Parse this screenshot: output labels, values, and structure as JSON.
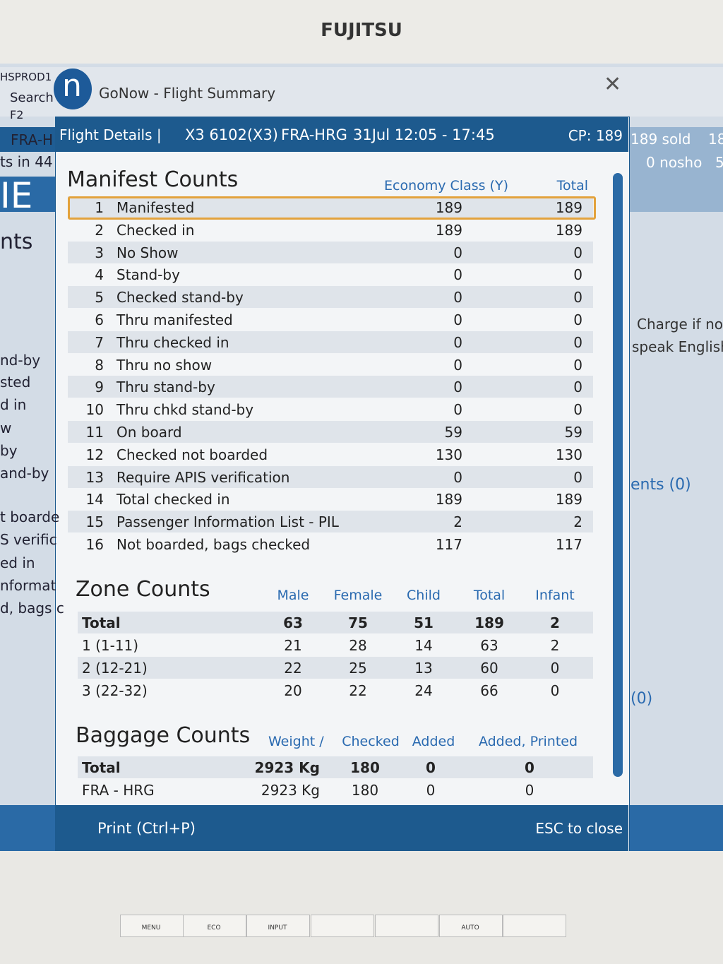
{
  "monitor": {
    "brand": "FUJITSU",
    "buttons": [
      "MENU",
      "ECO",
      "INPUT",
      "AUTO"
    ]
  },
  "background_app": {
    "left_texts": [
      "HSPROD1",
      "Search",
      "F2",
      "FRA-H",
      "ts in 44",
      "IE",
      "nts",
      "nd-by",
      "sted",
      "d in",
      "w",
      "by",
      "and-by",
      "t boarde",
      "S verific",
      "ed in",
      "nformat",
      "d, bags c"
    ],
    "right_texts": [
      "189 sold",
      "18",
      "0 nosho",
      "5",
      "Charge if no",
      "speak English",
      "ents (0)",
      "(0)"
    ]
  },
  "window": {
    "title": "GoNow - Flight Summary"
  },
  "dialog": {
    "header": {
      "label": "Flight Details |",
      "flight": "X3 6102(X3)",
      "route": "FRA-HRG",
      "schedule": "31Jul 12:05 - 17:45",
      "capacity": "CP: 189"
    },
    "manifest": {
      "title": "Manifest Counts",
      "columns": [
        "Economy Class (Y)",
        "Total"
      ],
      "rows": [
        [
          1,
          "Manifested",
          189,
          189
        ],
        [
          2,
          "Checked in",
          189,
          189
        ],
        [
          3,
          "No Show",
          0,
          0
        ],
        [
          4,
          "Stand-by",
          0,
          0
        ],
        [
          5,
          "Checked stand-by",
          0,
          0
        ],
        [
          6,
          "Thru manifested",
          0,
          0
        ],
        [
          7,
          "Thru checked in",
          0,
          0
        ],
        [
          8,
          "Thru no show",
          0,
          0
        ],
        [
          9,
          "Thru stand-by",
          0,
          0
        ],
        [
          10,
          "Thru chkd stand-by",
          0,
          0
        ],
        [
          11,
          "On board",
          59,
          59
        ],
        [
          12,
          "Checked not boarded",
          130,
          130
        ],
        [
          13,
          "Require APIS verification",
          0,
          0
        ],
        [
          14,
          "Total checked in",
          189,
          189
        ],
        [
          15,
          "Passenger Information List - PIL",
          2,
          2
        ],
        [
          16,
          "Not boarded, bags checked",
          117,
          117
        ]
      ]
    },
    "zones": {
      "title": "Zone Counts",
      "columns": [
        "Male",
        "Female",
        "Child",
        "Total",
        "Infant"
      ],
      "rows": [
        [
          "Total",
          63,
          75,
          51,
          189,
          2
        ],
        [
          "1 (1-11)",
          21,
          28,
          14,
          63,
          2
        ],
        [
          "2 (12-21)",
          22,
          25,
          13,
          60,
          0
        ],
        [
          "3 (22-32)",
          20,
          22,
          24,
          66,
          0
        ]
      ]
    },
    "baggage": {
      "title": "Baggage Counts",
      "columns": [
        "Weight /",
        "Checked",
        "Added",
        "Added, Printed"
      ],
      "rows": [
        [
          "Total",
          "2923 Kg",
          180,
          0,
          0
        ],
        [
          "FRA - HRG",
          "2923 Kg",
          180,
          0,
          0
        ]
      ]
    },
    "footer": {
      "print": "Print (Ctrl+P)",
      "close": "ESC to close"
    }
  }
}
